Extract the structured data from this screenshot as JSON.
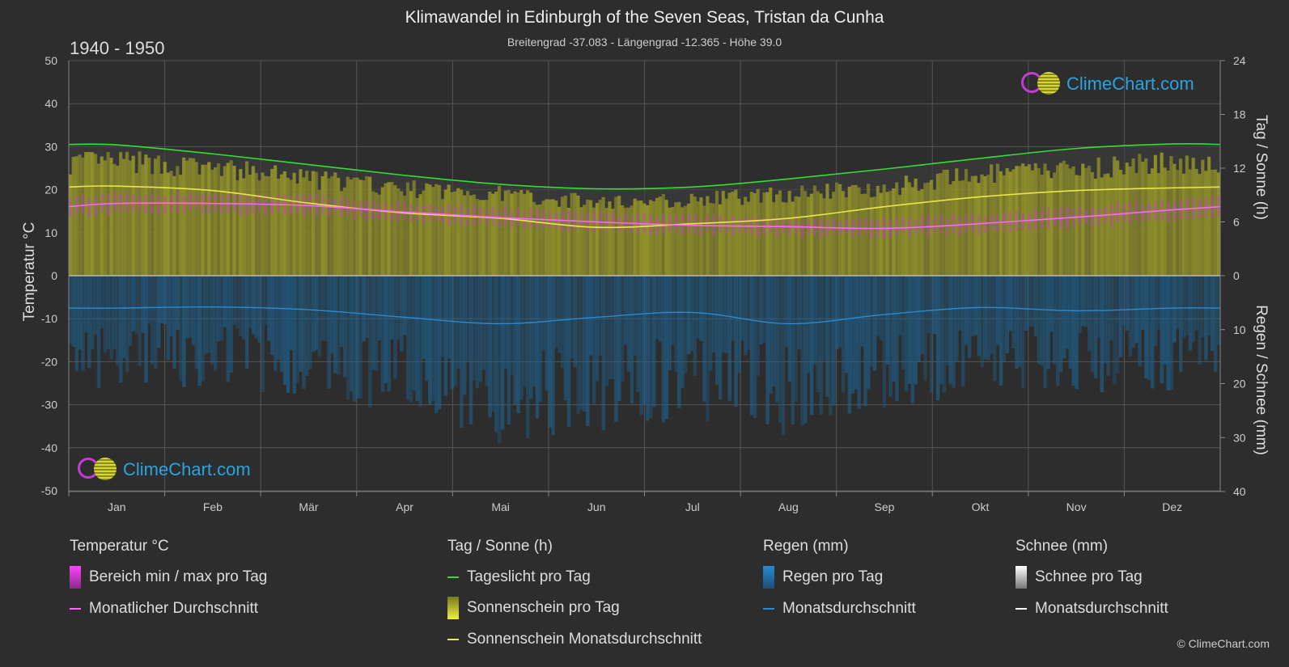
{
  "header": {
    "title": "Klimawandel in Edinburgh of the Seven Seas,  Tristan da Cunha",
    "subtitle": "Breitengrad -37.083 - Längengrad -12.365 - Höhe 39.0",
    "period": "1940 - 1950"
  },
  "axes": {
    "left_title": "Temperatur °C",
    "right_top_title": "Tag / Sonne (h)",
    "right_bottom_title": "Regen / Schnee (mm)"
  },
  "logo": {
    "text": "ClimeChart.com"
  },
  "copyright": "© ClimeChart.com",
  "legend": {
    "temperature": {
      "heading": "Temperatur °C",
      "range_label": "Bereich min / max pro Tag",
      "mean_label": "Monatlicher Durchschnitt"
    },
    "sun": {
      "heading": "Tag / Sonne (h)",
      "daylight_label": "Tageslicht pro Tag",
      "sunshine_label": "Sonnenschein pro Tag",
      "sunshine_mean_label": "Sonnenschein Monatsdurchschnitt"
    },
    "rain": {
      "heading": "Regen (mm)",
      "rain_label": "Regen pro Tag",
      "mean_label": "Monatsdurchschnitt"
    },
    "snow": {
      "heading": "Schnee (mm)",
      "snow_label": "Schnee pro Tag",
      "mean_label": "Monatsdurchschnitt"
    }
  },
  "colors": {
    "background": "#2d2d2d",
    "grid": "#555555",
    "daylight": "#33dd33",
    "sunshine": "#e8e84a",
    "sunshine_fill": "#a0a028",
    "temp_mean": "#ff66ff",
    "temp_range": "#c040c0",
    "rain": "#2a8ad0",
    "rain_fill": "#1f5f8a",
    "snow": "#ffffff"
  },
  "chart_data": {
    "type": "area",
    "categories": [
      "Jan",
      "Feb",
      "Mär",
      "Apr",
      "Mai",
      "Jun",
      "Jul",
      "Aug",
      "Sep",
      "Okt",
      "Nov",
      "Dez"
    ],
    "left_axis": {
      "ticks": [
        50,
        40,
        30,
        20,
        10,
        0,
        -10,
        -20,
        -30,
        -40,
        -50
      ],
      "range": [
        -50,
        50
      ]
    },
    "right_top_axis": {
      "ticks": [
        24,
        18,
        12,
        6,
        0
      ],
      "range": [
        0,
        24
      ]
    },
    "right_bottom_axis": {
      "ticks": [
        0,
        10,
        20,
        30,
        40
      ],
      "range": [
        0,
        40
      ]
    },
    "series": [
      {
        "name": "Tageslicht pro Tag",
        "unit": "h",
        "values": [
          14.6,
          13.6,
          12.4,
          11.2,
          10.2,
          9.7,
          9.9,
          10.8,
          11.9,
          13.1,
          14.2,
          14.7
        ]
      },
      {
        "name": "Sonnenschein Monatsdurchschnitt",
        "unit": "h",
        "values": [
          10.0,
          9.5,
          8.1,
          7.0,
          6.4,
          5.4,
          5.8,
          6.4,
          7.7,
          8.8,
          9.5,
          9.8
        ]
      },
      {
        "name": "Sonnenschein pro Tag",
        "unit": "h",
        "values": [
          13.4,
          12.6,
          11.4,
          10.2,
          9.6,
          8.6,
          8.9,
          9.6,
          10.4,
          11.8,
          12.6,
          13.2
        ]
      },
      {
        "name": "Monatlicher Durchschnitt",
        "unit": "°C",
        "values": [
          16.8,
          16.8,
          16.3,
          14.8,
          13.5,
          12.5,
          11.7,
          11.4,
          11.0,
          12.1,
          13.6,
          15.3
        ]
      },
      {
        "name": "Bereich min / max pro Tag",
        "unit": "°C",
        "min": [
          14.5,
          14.7,
          14.2,
          12.8,
          11.4,
          10.3,
          9.6,
          9.3,
          9.0,
          10.0,
          11.4,
          13.1
        ],
        "max": [
          19.0,
          19.0,
          18.5,
          16.8,
          15.6,
          14.6,
          13.8,
          13.4,
          13.0,
          14.2,
          15.8,
          17.5
        ]
      },
      {
        "name": "Monatsdurchschnitt",
        "unit": "mm",
        "values": [
          6.0,
          5.8,
          6.3,
          7.7,
          8.9,
          7.7,
          6.8,
          8.9,
          7.2,
          5.9,
          6.5,
          6.0
        ]
      },
      {
        "name": "Regen pro Tag",
        "unit": "mm",
        "values": [
          18,
          17,
          19,
          22,
          26,
          24,
          23,
          25,
          21,
          19,
          18,
          18
        ]
      },
      {
        "name": "Schnee Monatsdurchschnitt",
        "unit": "mm",
        "values": [
          0,
          0,
          0,
          0,
          0,
          0,
          0,
          0,
          0,
          0,
          0,
          0
        ]
      }
    ]
  }
}
